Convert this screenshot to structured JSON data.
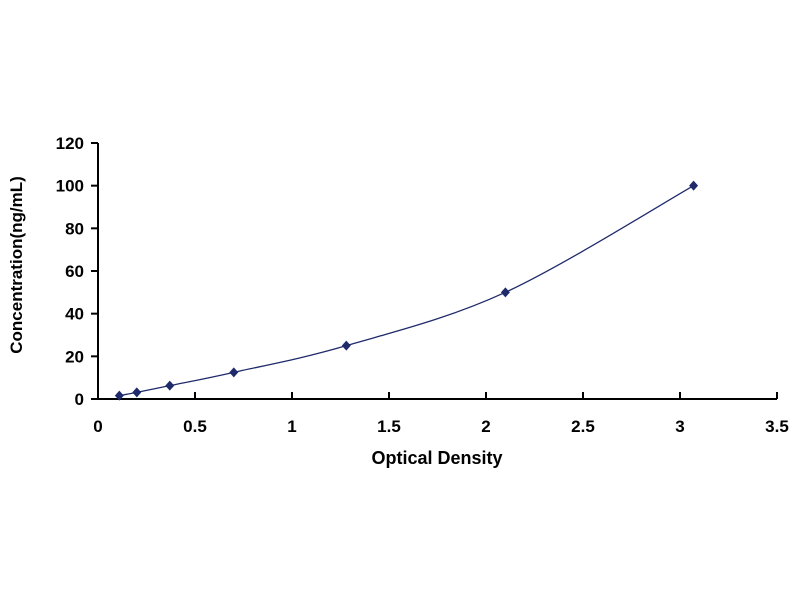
{
  "chart_data": {
    "type": "scatter",
    "title": "",
    "xlabel": "Optical Density",
    "ylabel": "Concentration(ng/mL)",
    "xlim": [
      0,
      3.5
    ],
    "ylim": [
      0,
      120
    ],
    "xticks": [
      "0",
      "0.5",
      "1",
      "1.5",
      "2",
      "2.5",
      "3",
      "3.5"
    ],
    "yticks": [
      "0",
      "20",
      "40",
      "60",
      "80",
      "100",
      "120"
    ],
    "grid": false,
    "legend": "none",
    "trendline": "smooth curve",
    "series": [
      {
        "x": [
          0.11,
          0.2,
          0.37,
          0.7,
          1.28,
          2.1,
          3.07
        ],
        "y": [
          1.56,
          3.12,
          6.25,
          12.5,
          25,
          50,
          100
        ],
        "color": "#1f2a6b"
      }
    ]
  }
}
